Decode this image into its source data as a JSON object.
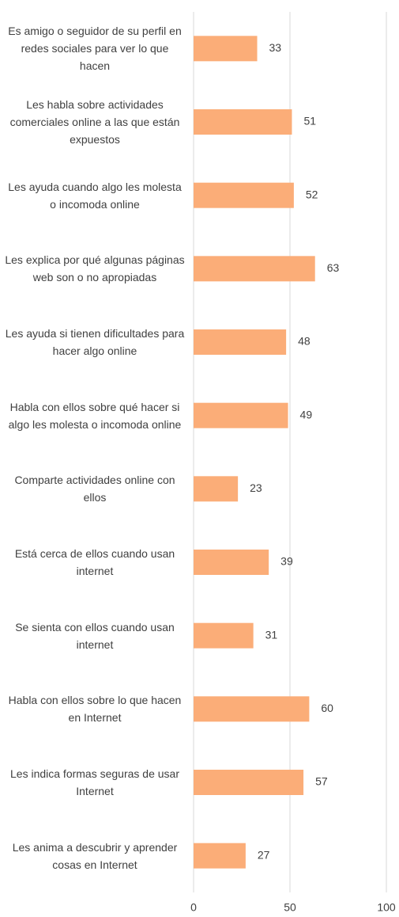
{
  "chart_data": {
    "type": "bar",
    "orientation": "horizontal",
    "categories": [
      "Es amigo o seguidor de su perfil en redes sociales para ver lo que hacen",
      "Les habla sobre actividades comerciales online a las que están expuestos",
      "Les ayuda cuando algo les molesta o incomoda online",
      "Les explica por qué algunas páginas web son o no apropiadas",
      "Les ayuda si tienen dificultades para hacer algo online",
      "Habla con ellos sobre qué hacer si algo les molesta o incomoda online",
      "Comparte actividades online con ellos",
      "Está cerca de ellos cuando usan internet",
      "Se sienta con ellos cuando usan internet",
      "Habla con ellos sobre lo que hacen en Internet",
      "Les indica formas seguras de usar Internet",
      "Les anima a descubrir y aprender cosas en Internet"
    ],
    "values": [
      33,
      51,
      52,
      63,
      48,
      49,
      23,
      39,
      31,
      60,
      57,
      27
    ],
    "color": "#fbad78",
    "xlim": [
      0,
      100
    ],
    "xticks": [
      0,
      50,
      100
    ],
    "grid": true
  }
}
